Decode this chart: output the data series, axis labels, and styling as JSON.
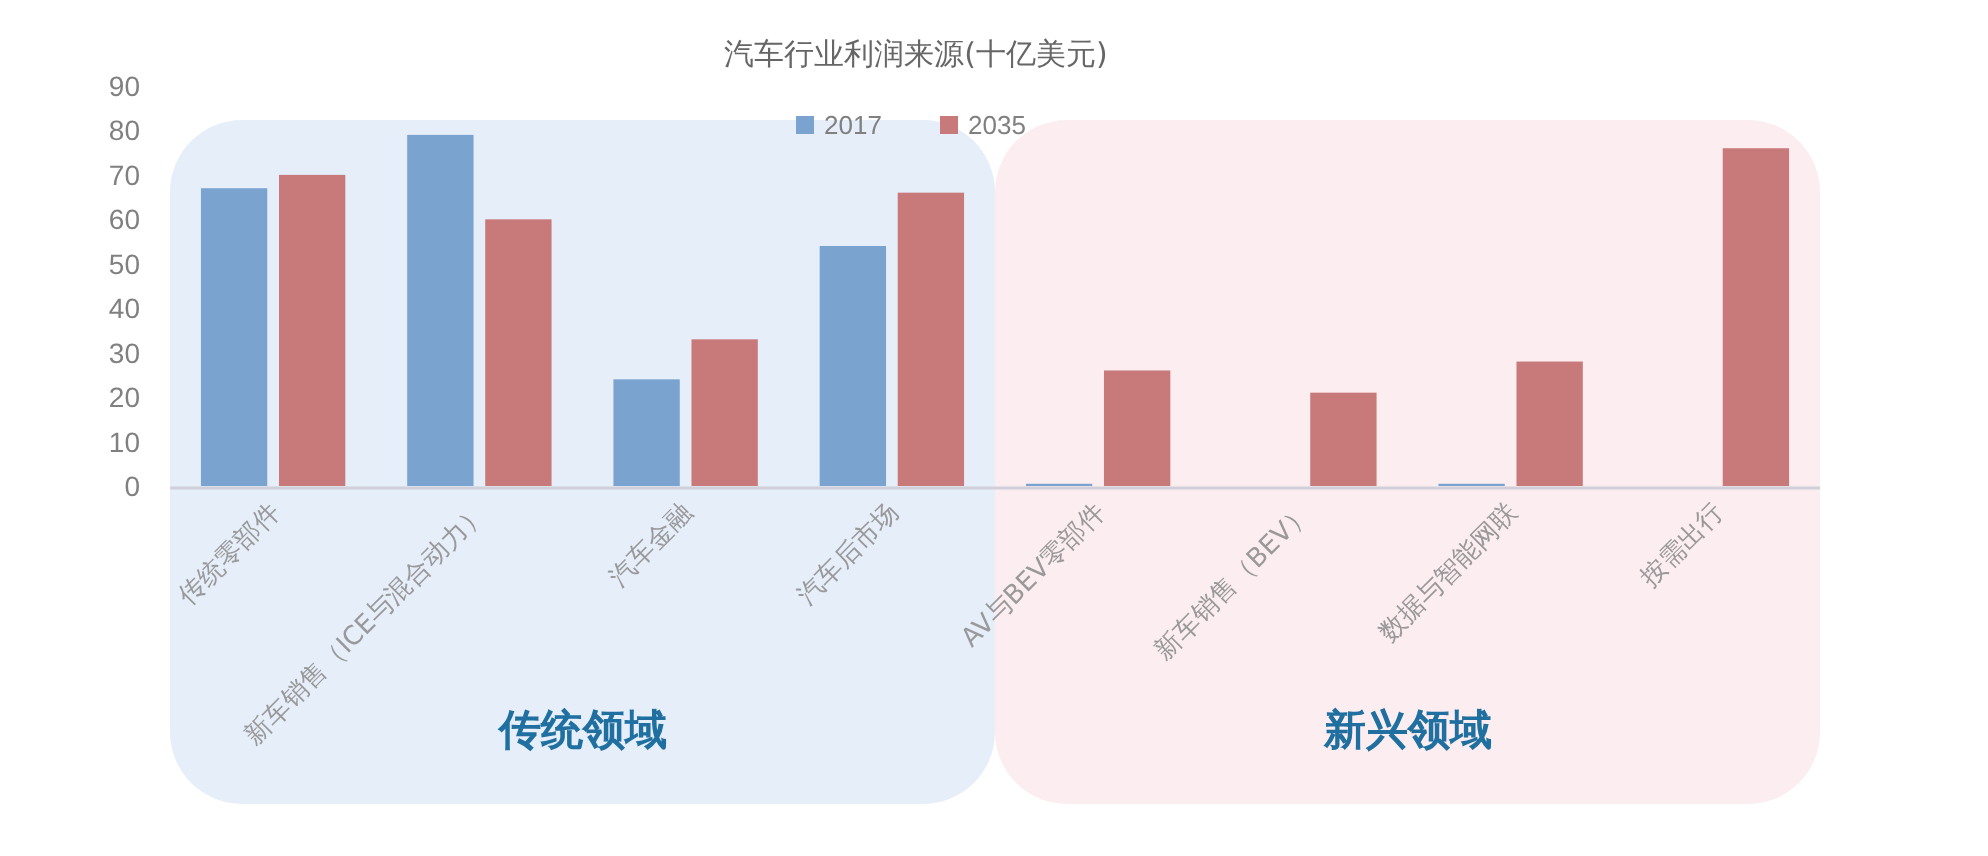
{
  "chart_data": {
    "type": "bar",
    "title": "汽车行业利润来源(十亿美元)",
    "categories": [
      "传统零部件",
      "新车销售（ICE与混合动力）",
      "汽车金融",
      "汽车后市场",
      "AV与BEV零部件",
      "新车销售（BEV）",
      "数据与智能网联",
      "按需出行"
    ],
    "series": [
      {
        "name": "2017",
        "color": "#7ba3d0",
        "values": [
          67,
          79,
          24,
          54,
          0.5,
          null,
          0.5,
          null
        ]
      },
      {
        "name": "2035",
        "color": "#c87a7a",
        "values": [
          70,
          60,
          33,
          66,
          26,
          21,
          28,
          76
        ]
      }
    ],
    "ylim": [
      0,
      90
    ],
    "yticks": [
      0,
      10,
      20,
      30,
      40,
      50,
      60,
      70,
      80,
      90
    ],
    "grid": false,
    "legend": "top",
    "bands": [
      {
        "axis": "x",
        "from": "传统零部件",
        "to": "汽车后市场",
        "label": "传统领域",
        "color": "#e6eefa"
      },
      {
        "axis": "x",
        "from": "AV与BEV零部件",
        "to": "按需出行",
        "label": "新兴领域",
        "color": "#fcedf0"
      }
    ]
  }
}
